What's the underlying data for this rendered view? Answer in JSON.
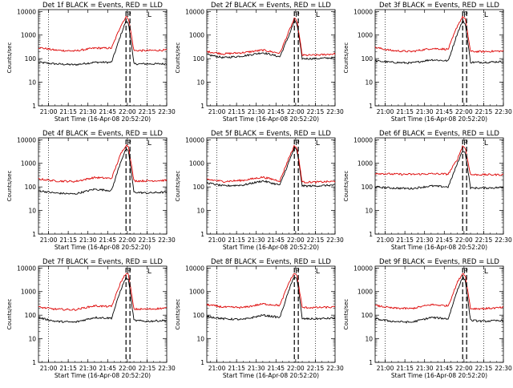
{
  "chart_data": [
    {
      "type": "line",
      "title": "Det 1f BLACK = Events, RED = LLD",
      "xlabel": "Start Time (16-Apr-08 20:52:20)",
      "ylabel": "Counts/sec",
      "ylim": [
        1,
        12000
      ],
      "yscale": "log",
      "xlim": [
        "20:52:20",
        "22:30:00"
      ],
      "xticks": [
        "21:00",
        "21:15",
        "21:30",
        "21:45",
        "22:00",
        "22:15",
        "22:30"
      ],
      "yticks": [
        "1",
        "10",
        "100",
        "1000",
        "10000"
      ],
      "grid": false,
      "markers": [
        "P",
        "L"
      ],
      "series": [
        {
          "name": "Events",
          "color": "#000000",
          "x": [
            "20:52",
            "21:05",
            "21:20",
            "21:35",
            "21:48",
            "21:55",
            "21:59",
            "22:01",
            "22:05",
            "22:15",
            "22:30"
          ],
          "values": [
            70,
            60,
            55,
            70,
            70,
            1000,
            4000,
            3000,
            60,
            60,
            60
          ]
        },
        {
          "name": "LLD",
          "color": "#dd0000",
          "x": [
            "20:52",
            "21:05",
            "21:20",
            "21:35",
            "21:48",
            "21:55",
            "21:59",
            "22:01",
            "22:05",
            "22:15",
            "22:30"
          ],
          "values": [
            300,
            230,
            210,
            280,
            280,
            2500,
            6000,
            5000,
            220,
            220,
            230
          ]
        }
      ]
    },
    {
      "type": "line",
      "title": "Det 2f BLACK = Events, RED = LLD",
      "xlabel": "Start Time (16-Apr-08 20:52:20)",
      "ylabel": "Counts/sec",
      "ylim": [
        1,
        12000
      ],
      "yscale": "log",
      "xlim": [
        "20:52:20",
        "22:30:00"
      ],
      "xticks": [
        "21:00",
        "21:15",
        "21:30",
        "21:45",
        "22:00",
        "22:15",
        "22:30"
      ],
      "yticks": [
        "1",
        "10",
        "100",
        "1000",
        "10000"
      ],
      "grid": false,
      "markers": [
        "P",
        "L"
      ],
      "series": [
        {
          "name": "Events",
          "color": "#000000",
          "x": [
            "20:52",
            "21:05",
            "21:20",
            "21:35",
            "21:48",
            "21:55",
            "21:59",
            "22:01",
            "22:05",
            "22:15",
            "22:30"
          ],
          "values": [
            150,
            110,
            130,
            180,
            120,
            1000,
            4000,
            3000,
            100,
            100,
            110
          ]
        },
        {
          "name": "LLD",
          "color": "#dd0000",
          "x": [
            "20:52",
            "21:05",
            "21:20",
            "21:35",
            "21:48",
            "21:55",
            "21:59",
            "22:01",
            "22:05",
            "22:15",
            "22:30"
          ],
          "values": [
            200,
            160,
            180,
            230,
            170,
            1500,
            5000,
            4000,
            140,
            140,
            160
          ]
        }
      ]
    },
    {
      "type": "line",
      "title": "Det 3f BLACK = Events, RED = LLD",
      "xlabel": "Start Time (16-Apr-08 20:52:20)",
      "ylabel": "Counts/sec",
      "ylim": [
        1,
        12000
      ],
      "yscale": "log",
      "xlim": [
        "20:52:20",
        "22:30:00"
      ],
      "xticks": [
        "21:00",
        "21:15",
        "21:30",
        "21:45",
        "22:00",
        "22:15",
        "22:30"
      ],
      "yticks": [
        "1",
        "10",
        "100",
        "1000",
        "10000"
      ],
      "grid": false,
      "markers": [
        "P",
        "L"
      ],
      "series": [
        {
          "name": "Events",
          "color": "#000000",
          "x": [
            "20:52",
            "21:05",
            "21:20",
            "21:35",
            "21:48",
            "21:55",
            "21:59",
            "22:01",
            "22:05",
            "22:15",
            "22:30"
          ],
          "values": [
            80,
            70,
            65,
            90,
            80,
            1200,
            4000,
            3000,
            70,
            70,
            75
          ]
        },
        {
          "name": "LLD",
          "color": "#dd0000",
          "x": [
            "20:52",
            "21:05",
            "21:20",
            "21:35",
            "21:48",
            "21:55",
            "21:59",
            "22:01",
            "22:05",
            "22:15",
            "22:30"
          ],
          "values": [
            300,
            220,
            200,
            270,
            250,
            2500,
            6000,
            5000,
            200,
            200,
            210
          ]
        }
      ]
    },
    {
      "type": "line",
      "title": "Det 4f BLACK = Events, RED = LLD",
      "xlabel": "Start Time (16-Apr-08 20:52:20)",
      "ylabel": "Counts/sec",
      "ylim": [
        1,
        12000
      ],
      "yscale": "log",
      "xlim": [
        "20:52:20",
        "22:30:00"
      ],
      "xticks": [
        "21:00",
        "21:15",
        "21:30",
        "21:45",
        "22:00",
        "22:15",
        "22:30"
      ],
      "yticks": [
        "1",
        "10",
        "100",
        "1000",
        "10000"
      ],
      "grid": false,
      "markers": [
        "P",
        "L"
      ],
      "series": [
        {
          "name": "Events",
          "color": "#000000",
          "x": [
            "20:52",
            "21:05",
            "21:20",
            "21:35",
            "21:48",
            "21:55",
            "21:59",
            "22:01",
            "22:05",
            "22:15",
            "22:30"
          ],
          "values": [
            70,
            55,
            50,
            80,
            70,
            1200,
            4000,
            3000,
            60,
            55,
            60
          ]
        },
        {
          "name": "LLD",
          "color": "#dd0000",
          "x": [
            "20:52",
            "21:05",
            "21:20",
            "21:35",
            "21:48",
            "21:55",
            "21:59",
            "22:01",
            "22:05",
            "22:15",
            "22:30"
          ],
          "values": [
            220,
            180,
            170,
            250,
            230,
            2500,
            6000,
            5000,
            180,
            180,
            190
          ]
        }
      ]
    },
    {
      "type": "line",
      "title": "Det 5f BLACK = Events, RED = LLD",
      "xlabel": "Start Time (16-Apr-08 20:52:20)",
      "ylabel": "Counts/sec",
      "ylim": [
        1,
        12000
      ],
      "yscale": "log",
      "xlim": [
        "20:52:20",
        "22:30:00"
      ],
      "xticks": [
        "21:00",
        "21:15",
        "21:30",
        "21:45",
        "22:00",
        "22:15",
        "22:30"
      ],
      "yticks": [
        "1",
        "10",
        "100",
        "1000",
        "10000"
      ],
      "grid": false,
      "markers": [
        "P",
        "L"
      ],
      "series": [
        {
          "name": "Events",
          "color": "#000000",
          "x": [
            "20:52",
            "21:05",
            "21:20",
            "21:35",
            "21:48",
            "21:55",
            "21:59",
            "22:01",
            "22:05",
            "22:15",
            "22:30"
          ],
          "values": [
            150,
            110,
            120,
            180,
            120,
            1200,
            4500,
            3500,
            110,
            110,
            120
          ]
        },
        {
          "name": "LLD",
          "color": "#dd0000",
          "x": [
            "20:52",
            "21:05",
            "21:20",
            "21:35",
            "21:48",
            "21:55",
            "21:59",
            "22:01",
            "22:05",
            "22:15",
            "22:30"
          ],
          "values": [
            210,
            170,
            190,
            260,
            180,
            1800,
            5500,
            4500,
            160,
            160,
            170
          ]
        }
      ]
    },
    {
      "type": "line",
      "title": "Det 6f BLACK = Events, RED = LLD",
      "xlabel": "Start Time (16-Apr-08 20:52:20)",
      "ylabel": "Counts/sec",
      "ylim": [
        1,
        12000
      ],
      "yscale": "log",
      "xlim": [
        "20:52:20",
        "22:30:00"
      ],
      "xticks": [
        "21:00",
        "21:15",
        "21:30",
        "21:45",
        "22:00",
        "22:15",
        "22:30"
      ],
      "yticks": [
        "1",
        "10",
        "100",
        "1000",
        "10000"
      ],
      "grid": false,
      "markers": [
        "P",
        "L"
      ],
      "series": [
        {
          "name": "Events",
          "color": "#000000",
          "x": [
            "20:52",
            "21:05",
            "21:20",
            "21:35",
            "21:48",
            "21:55",
            "21:59",
            "22:01",
            "22:05",
            "22:15",
            "22:30"
          ],
          "values": [
            100,
            90,
            85,
            110,
            100,
            1000,
            3500,
            2800,
            90,
            90,
            95
          ]
        },
        {
          "name": "LLD",
          "color": "#dd0000",
          "x": [
            "20:52",
            "21:05",
            "21:20",
            "21:35",
            "21:48",
            "21:55",
            "21:59",
            "22:01",
            "22:05",
            "22:15",
            "22:30"
          ],
          "values": [
            380,
            350,
            340,
            360,
            350,
            1500,
            5500,
            4500,
            330,
            330,
            330
          ]
        }
      ]
    },
    {
      "type": "line",
      "title": "Det 7f BLACK = Events, RED = LLD",
      "xlabel": "Start Time (16-Apr-08 20:52:20)",
      "ylabel": "Counts/sec",
      "ylim": [
        1,
        12000
      ],
      "yscale": "log",
      "xlim": [
        "20:52:20",
        "22:30:00"
      ],
      "xticks": [
        "21:00",
        "21:15",
        "21:30",
        "21:45",
        "22:00",
        "22:15",
        "22:30"
      ],
      "yticks": [
        "1",
        "10",
        "100",
        "1000",
        "10000"
      ],
      "grid": false,
      "markers": [
        "P",
        "L"
      ],
      "series": [
        {
          "name": "Events",
          "color": "#000000",
          "x": [
            "20:52",
            "21:05",
            "21:20",
            "21:35",
            "21:48",
            "21:55",
            "21:59",
            "22:01",
            "22:05",
            "22:15",
            "22:30"
          ],
          "values": [
            80,
            55,
            50,
            80,
            75,
            1200,
            4000,
            3000,
            60,
            55,
            60
          ]
        },
        {
          "name": "LLD",
          "color": "#dd0000",
          "x": [
            "20:52",
            "21:05",
            "21:20",
            "21:35",
            "21:48",
            "21:55",
            "21:59",
            "22:01",
            "22:05",
            "22:15",
            "22:30"
          ],
          "values": [
            220,
            180,
            170,
            250,
            230,
            2500,
            6000,
            5000,
            180,
            180,
            200
          ]
        }
      ]
    },
    {
      "type": "line",
      "title": "Det 8f BLACK = Events, RED = LLD",
      "xlabel": "Start Time (16-Apr-08 20:52:20)",
      "ylabel": "Counts/sec",
      "ylim": [
        1,
        12000
      ],
      "yscale": "log",
      "xlim": [
        "20:52:20",
        "22:30:00"
      ],
      "xticks": [
        "21:00",
        "21:15",
        "21:30",
        "21:45",
        "22:00",
        "22:15",
        "22:30"
      ],
      "yticks": [
        "1",
        "10",
        "100",
        "1000",
        "10000"
      ],
      "grid": false,
      "markers": [
        "P",
        "L"
      ],
      "series": [
        {
          "name": "Events",
          "color": "#000000",
          "x": [
            "20:52",
            "21:05",
            "21:20",
            "21:35",
            "21:48",
            "21:55",
            "21:59",
            "22:01",
            "22:05",
            "22:15",
            "22:30"
          ],
          "values": [
            90,
            70,
            65,
            100,
            80,
            1200,
            4500,
            3500,
            70,
            70,
            75
          ]
        },
        {
          "name": "LLD",
          "color": "#dd0000",
          "x": [
            "20:52",
            "21:05",
            "21:20",
            "21:35",
            "21:48",
            "21:55",
            "21:59",
            "22:01",
            "22:05",
            "22:15",
            "22:30"
          ],
          "values": [
            280,
            220,
            210,
            300,
            260,
            2500,
            6000,
            5000,
            210,
            210,
            220
          ]
        }
      ]
    },
    {
      "type": "line",
      "title": "Det 9f BLACK = Events, RED = LLD",
      "xlabel": "Start Time (16-Apr-08 20:52:20)",
      "ylabel": "Counts/sec",
      "ylim": [
        1,
        12000
      ],
      "yscale": "log",
      "xlim": [
        "20:52:20",
        "22:30:00"
      ],
      "xticks": [
        "21:00",
        "21:15",
        "21:30",
        "21:45",
        "22:00",
        "22:15",
        "22:30"
      ],
      "yticks": [
        "1",
        "10",
        "100",
        "1000",
        "10000"
      ],
      "grid": false,
      "markers": [
        "P",
        "L"
      ],
      "series": [
        {
          "name": "Events",
          "color": "#000000",
          "x": [
            "20:52",
            "21:05",
            "21:20",
            "21:35",
            "21:48",
            "21:55",
            "21:59",
            "22:01",
            "22:05",
            "22:15",
            "22:30"
          ],
          "values": [
            70,
            55,
            50,
            80,
            70,
            1200,
            4000,
            3000,
            60,
            55,
            60
          ]
        },
        {
          "name": "LLD",
          "color": "#dd0000",
          "x": [
            "20:52",
            "21:05",
            "21:20",
            "21:35",
            "21:48",
            "21:55",
            "21:59",
            "22:01",
            "22:05",
            "22:15",
            "22:30"
          ],
          "values": [
            260,
            200,
            190,
            280,
            250,
            2500,
            6000,
            5000,
            190,
            190,
            210
          ]
        }
      ]
    }
  ]
}
